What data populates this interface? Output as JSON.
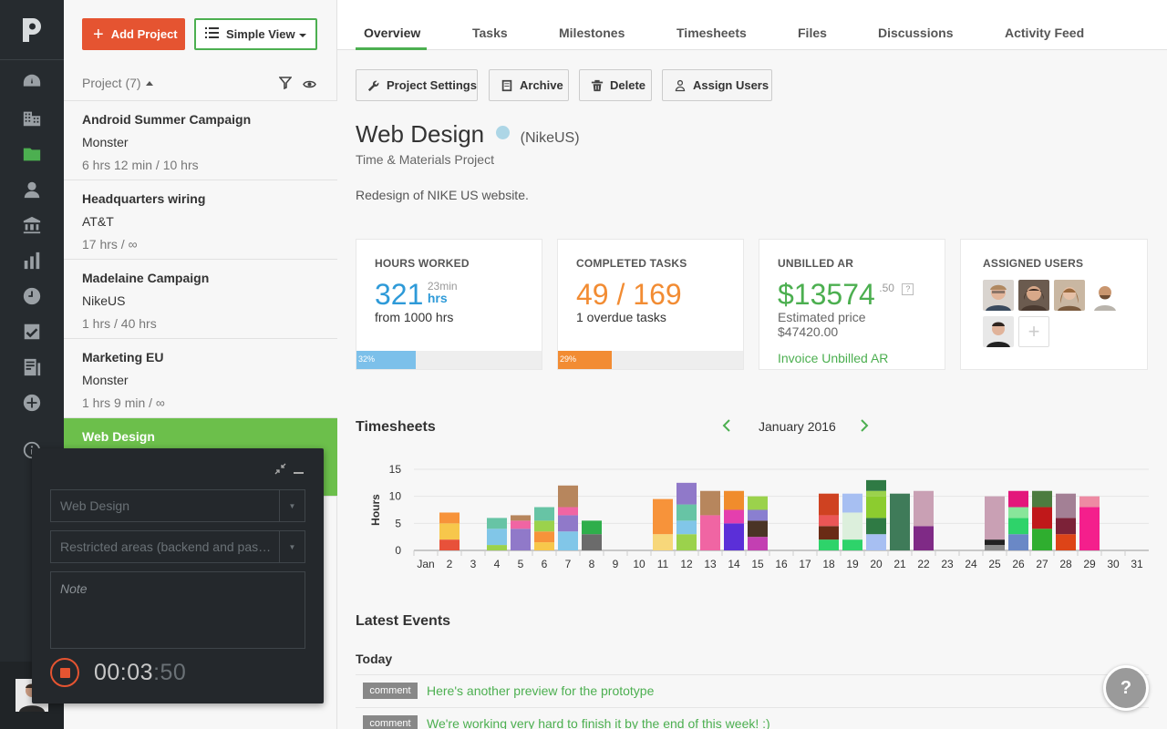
{
  "toolbar": {
    "add_project": "Add Project",
    "view": "Simple View"
  },
  "projects_header": "Project (7)",
  "projects": [
    {
      "name": "Android Summer Campaign",
      "client": "Monster",
      "hours": "6 hrs 12 min / 10 hrs"
    },
    {
      "name": "Headquarters wiring",
      "client": "AT&T",
      "hours": "17 hrs / ∞"
    },
    {
      "name": "Madelaine Campaign",
      "client": "NikeUS",
      "hours": "1 hrs / 40 hrs"
    },
    {
      "name": "Marketing EU",
      "client": "Monster",
      "hours": "1 hrs 9 min / ∞"
    },
    {
      "name": "Web Design",
      "client": "",
      "hours": ""
    }
  ],
  "timer": {
    "project": "Web Design",
    "task": "Restricted areas (backend and pas…",
    "note_placeholder": "Note",
    "time_main": "00:03",
    "time_sec": ":50"
  },
  "tabs": [
    "Overview",
    "Tasks",
    "Milestones",
    "Timesheets",
    "Files",
    "Discussions",
    "Activity Feed"
  ],
  "actions": {
    "settings": "Project Settings",
    "archive": "Archive",
    "delete": "Delete",
    "assign": "Assign Users"
  },
  "project": {
    "title": "Web Design",
    "client": "(NikeUS)",
    "type": "Time & Materials Project",
    "description": "Redesign of NIKE US website."
  },
  "cards": {
    "hours": {
      "label": "HOURS WORKED",
      "value": "321",
      "minutes": "23min",
      "unit": "hrs",
      "sub": "from 1000 hrs",
      "progress_label": "32%",
      "progress": 0.32,
      "color": "#2e9ad8"
    },
    "tasks": {
      "label": "COMPLETED TASKS",
      "value": "49 / 169",
      "sub": "1 overdue tasks",
      "progress_label": "29%",
      "progress": 0.29,
      "color": "#f28c33"
    },
    "ar": {
      "label": "UNBILLED AR",
      "value": "$13574",
      "cents": ".50",
      "q": "?",
      "sub1": "Estimated price",
      "sub2": "$47420.00",
      "link": "Invoice Unbilled AR",
      "color": "#4caf50"
    },
    "users": {
      "label": "ASSIGNED USERS",
      "add": "+"
    }
  },
  "timesheets": {
    "title": "Timesheets",
    "month": "January 2016"
  },
  "chart_data": {
    "type": "bar",
    "ylabel": "Hours",
    "ylim": [
      0,
      15
    ],
    "yticks": [
      0,
      5,
      10,
      15
    ],
    "categories": [
      "Jan",
      "2",
      "3",
      "4",
      "5",
      "6",
      "7",
      "8",
      "9",
      "10",
      "11",
      "12",
      "13",
      "14",
      "15",
      "16",
      "17",
      "18",
      "19",
      "20",
      "21",
      "22",
      "23",
      "24",
      "25",
      "26",
      "27",
      "28",
      "29",
      "30",
      "31"
    ],
    "stacks": [
      [],
      [
        [
          2,
          "#e8513a"
        ],
        [
          3,
          "#f7c74b"
        ],
        [
          2,
          "#f7933a"
        ]
      ],
      [],
      [
        [
          1,
          "#9bd24c"
        ],
        [
          3,
          "#81c6e8"
        ],
        [
          2,
          "#67c4a5"
        ]
      ],
      [
        [
          4,
          "#9079c9"
        ],
        [
          1.5,
          "#f065a3"
        ],
        [
          1,
          "#b7865d"
        ]
      ],
      [
        [
          1.5,
          "#f7c74b"
        ],
        [
          2,
          "#f7933a"
        ],
        [
          2,
          "#9bd24c"
        ],
        [
          2.5,
          "#67c4a5"
        ]
      ],
      [
        [
          3.5,
          "#81c6e8"
        ],
        [
          3,
          "#9079c9"
        ],
        [
          1.5,
          "#f065a3"
        ],
        [
          4,
          "#b7865d"
        ]
      ],
      [
        [
          3,
          "#6b6b6b"
        ],
        [
          2.5,
          "#2fae4b"
        ]
      ],
      [],
      [],
      [
        [
          3,
          "#f7d77a"
        ],
        [
          6.5,
          "#f7933a"
        ]
      ],
      [
        [
          3,
          "#9bd24c"
        ],
        [
          2.5,
          "#81c6e8"
        ],
        [
          3,
          "#67c4a5"
        ],
        [
          4,
          "#9079c9"
        ]
      ],
      [
        [
          6.5,
          "#f065a3"
        ],
        [
          4.5,
          "#b7865d"
        ]
      ],
      [
        [
          5,
          "#5b2fd8"
        ],
        [
          2.5,
          "#e43fae"
        ],
        [
          3.5,
          "#f08c2c"
        ]
      ],
      [
        [
          2.5,
          "#c33fb2"
        ],
        [
          3,
          "#4a3425"
        ],
        [
          2,
          "#8a7fd0"
        ],
        [
          2.5,
          "#9bd24c"
        ]
      ],
      [],
      [],
      [
        [
          2,
          "#2ed36a"
        ],
        [
          2.5,
          "#6a2b15"
        ],
        [
          2,
          "#ea5656"
        ],
        [
          4,
          "#cf4221"
        ]
      ],
      [
        [
          2,
          "#2ed36a"
        ],
        [
          5,
          "#dcefdc"
        ],
        [
          3.5,
          "#a7bff2"
        ]
      ],
      [
        [
          3,
          "#a7bff2"
        ],
        [
          3,
          "#2f7a44"
        ],
        [
          4,
          "#8ccc2f"
        ],
        [
          1,
          "#9bd24c"
        ],
        [
          2,
          "#2f7a44"
        ]
      ],
      [
        [
          10.5,
          "#3f7b59"
        ]
      ],
      [
        [
          4.5,
          "#7f2a86"
        ],
        [
          6.5,
          "#c9a0b4"
        ]
      ],
      [],
      [],
      [
        [
          1,
          "#8a8a8a"
        ],
        [
          1,
          "#222"
        ],
        [
          8,
          "#c9a0b4"
        ]
      ],
      [
        [
          3,
          "#6a88c6"
        ],
        [
          3,
          "#2ed36a"
        ],
        [
          2,
          "#88e69a"
        ],
        [
          3,
          "#e3177b"
        ]
      ],
      [
        [
          4,
          "#2fae2f"
        ],
        [
          4,
          "#c0181a"
        ],
        [
          3,
          "#4c7c3f"
        ]
      ],
      [
        [
          3,
          "#dd4418"
        ],
        [
          3,
          "#7c2238"
        ],
        [
          4.5,
          "#a38095"
        ]
      ],
      [
        [
          8,
          "#f41f8c"
        ],
        [
          2,
          "#ee8aa3"
        ]
      ],
      [],
      []
    ]
  },
  "events": {
    "title": "Latest Events",
    "group": "Today",
    "items": [
      {
        "tag": "comment",
        "text": "Here's another preview for the prototype"
      },
      {
        "tag": "comment",
        "text": "We're working very hard to finish it by the end of this week! :)"
      }
    ]
  },
  "help": "?"
}
